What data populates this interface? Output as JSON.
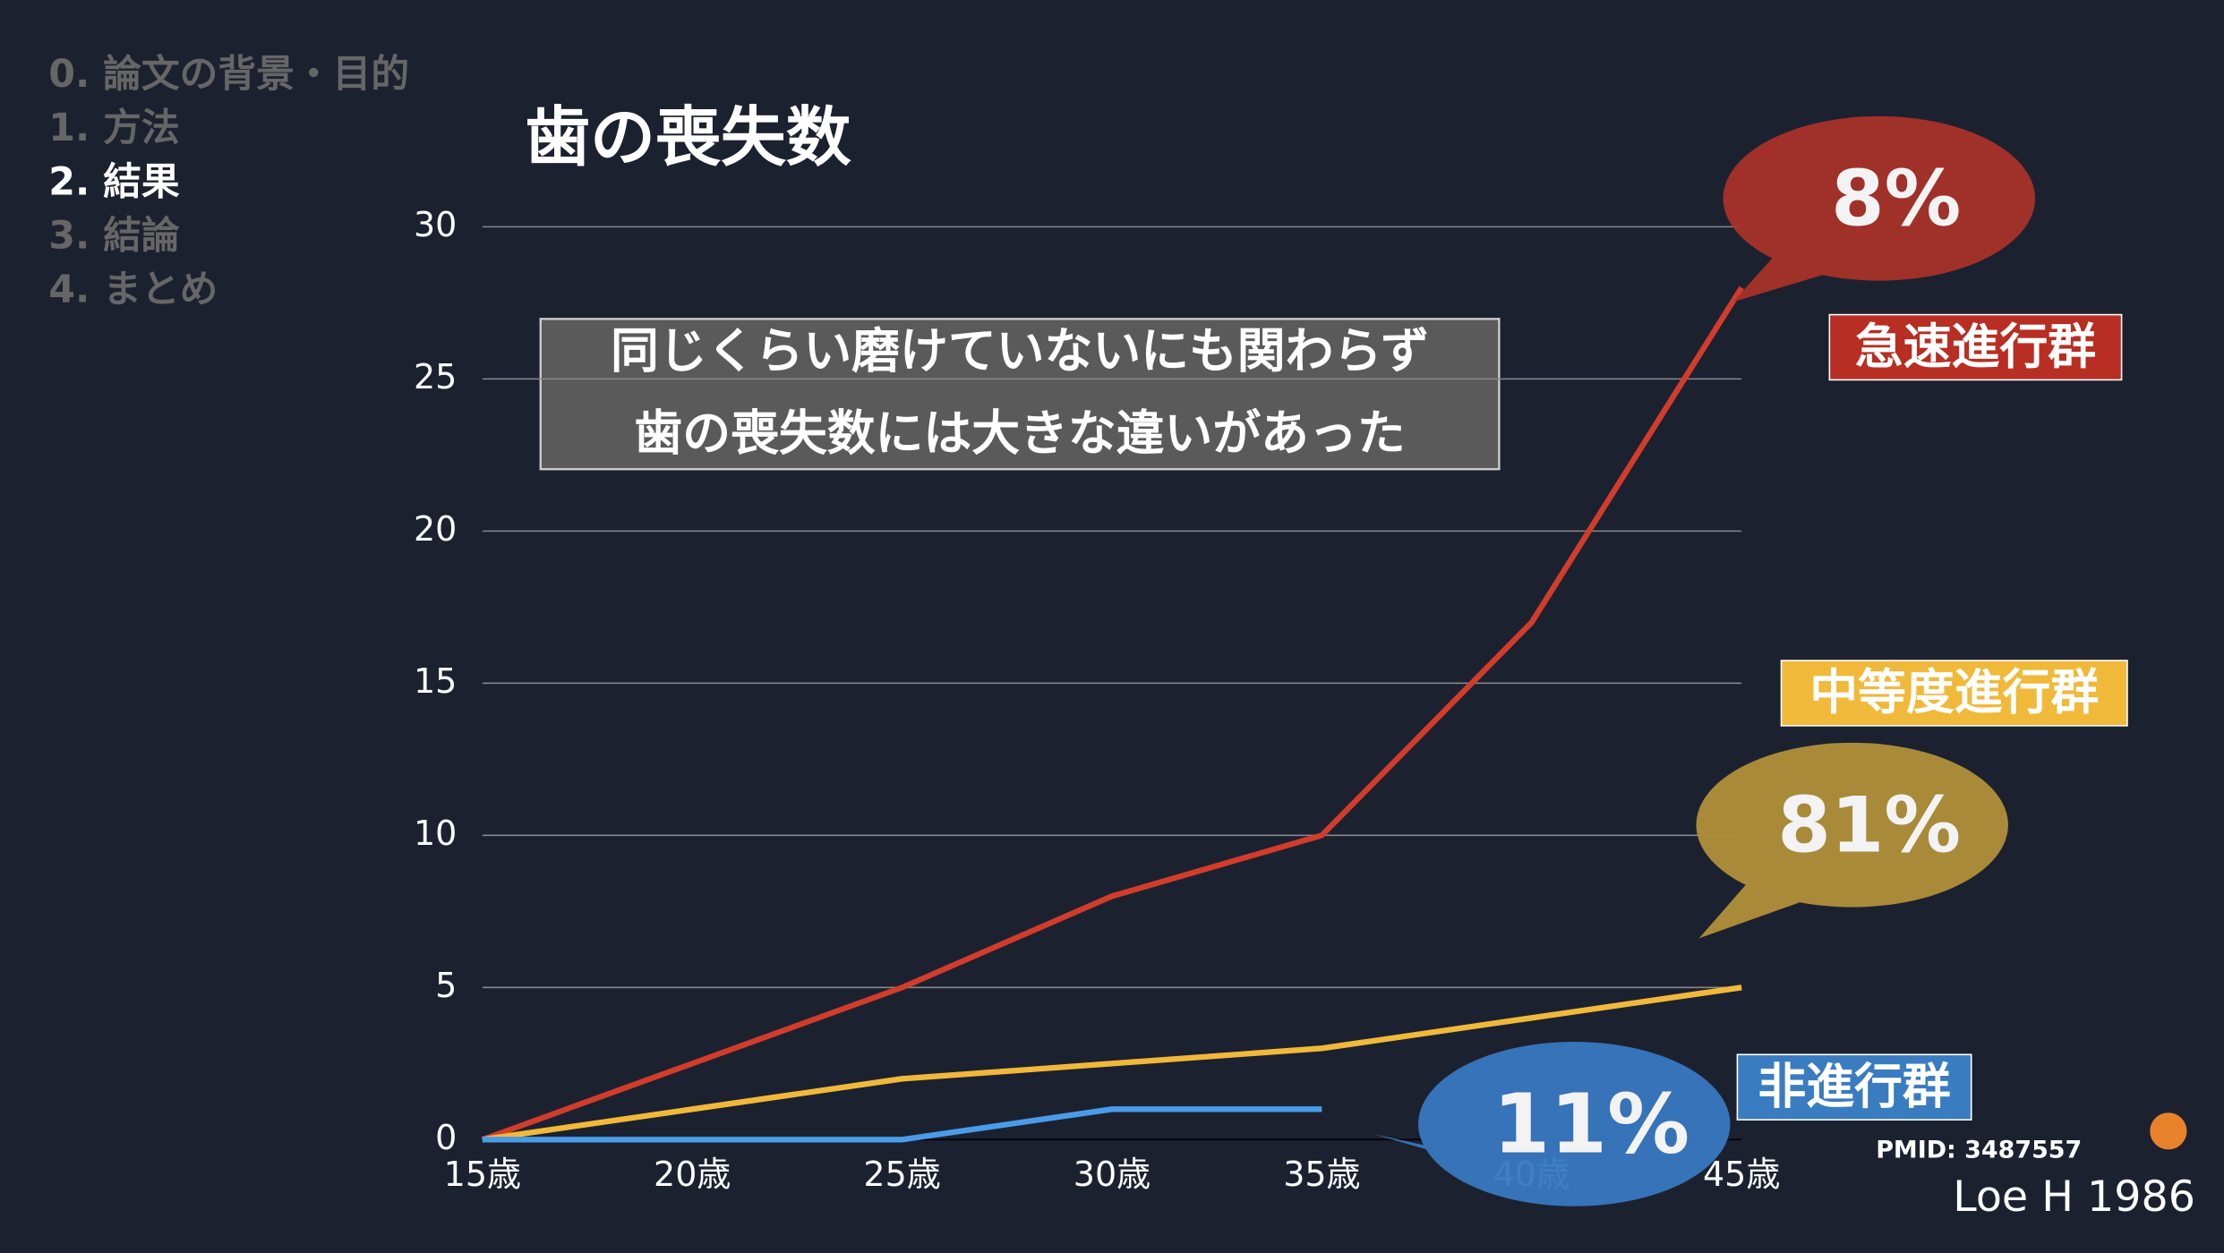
{
  "menu": {
    "items": [
      "0. 論文の背景・目的",
      "1. 方法",
      "2. 結果",
      "3. 結論",
      "4. まとめ"
    ],
    "active": 2
  },
  "chart_data": {
    "type": "line",
    "title": "歯の喪失数",
    "categories": [
      "15歳",
      "20歳",
      "25歳",
      "30歳",
      "35歳",
      "40歳",
      "45歳"
    ],
    "series": [
      {
        "name": "急速進行群",
        "color": "#d23c2a",
        "values": [
          0,
          2.5,
          5,
          8,
          10,
          17,
          28
        ],
        "share_label": "8%"
      },
      {
        "name": "中等度進行群",
        "color": "#f0b93a",
        "values": [
          0,
          1,
          2,
          2.5,
          3,
          4,
          5
        ],
        "share_label": "81%"
      },
      {
        "name": "非進行群",
        "color": "#4a9be8",
        "values": [
          0,
          0,
          0,
          1,
          1,
          null,
          null
        ],
        "share_label": "11%"
      }
    ],
    "ylim": [
      0,
      30
    ],
    "yticks": [
      0,
      5,
      10,
      15,
      20,
      25,
      30
    ],
    "grid": true,
    "annotation_lines": [
      "同じくらい磨けていないにも関わらず",
      "歯の喪失数には大きな違いがあった"
    ]
  },
  "footer": {
    "pmid": "PMID: 3487557",
    "citation": "Loe H 1986"
  }
}
